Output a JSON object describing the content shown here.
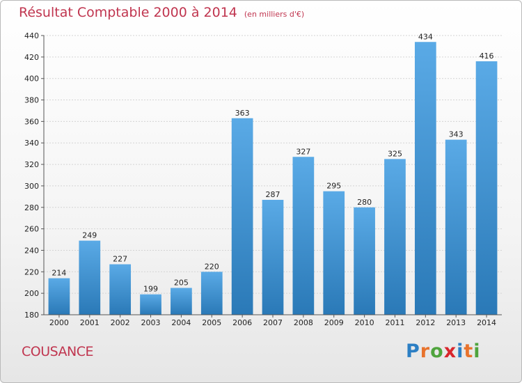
{
  "header": {
    "title": "Résultat Comptable 2000 à 2014",
    "unit": "(en milliers d'€)"
  },
  "footer": {
    "city": "COUSANCE",
    "logo_letters": [
      "P",
      "r",
      "o",
      "x",
      "i",
      "t",
      "i"
    ],
    "logo_colors": [
      "#2c7fc4",
      "#e8732d",
      "#4fa43d",
      "#d8262c",
      "#2c7fc4",
      "#e8732d",
      "#4fa43d"
    ]
  },
  "chart_data": {
    "type": "bar",
    "categories": [
      "2000",
      "2001",
      "2002",
      "2003",
      "2004",
      "2005",
      "2006",
      "2007",
      "2008",
      "2009",
      "2010",
      "2011",
      "2012",
      "2013",
      "2014"
    ],
    "values": [
      214,
      249,
      227,
      199,
      205,
      220,
      363,
      287,
      327,
      295,
      280,
      325,
      434,
      343,
      416
    ],
    "ylim": [
      180,
      440
    ],
    "yticks": [
      180,
      200,
      220,
      240,
      260,
      280,
      300,
      320,
      340,
      360,
      380,
      400,
      420,
      440
    ],
    "grid": true,
    "bar_color_top": "#5aaae6",
    "bar_color_bottom": "#2a79b7"
  }
}
